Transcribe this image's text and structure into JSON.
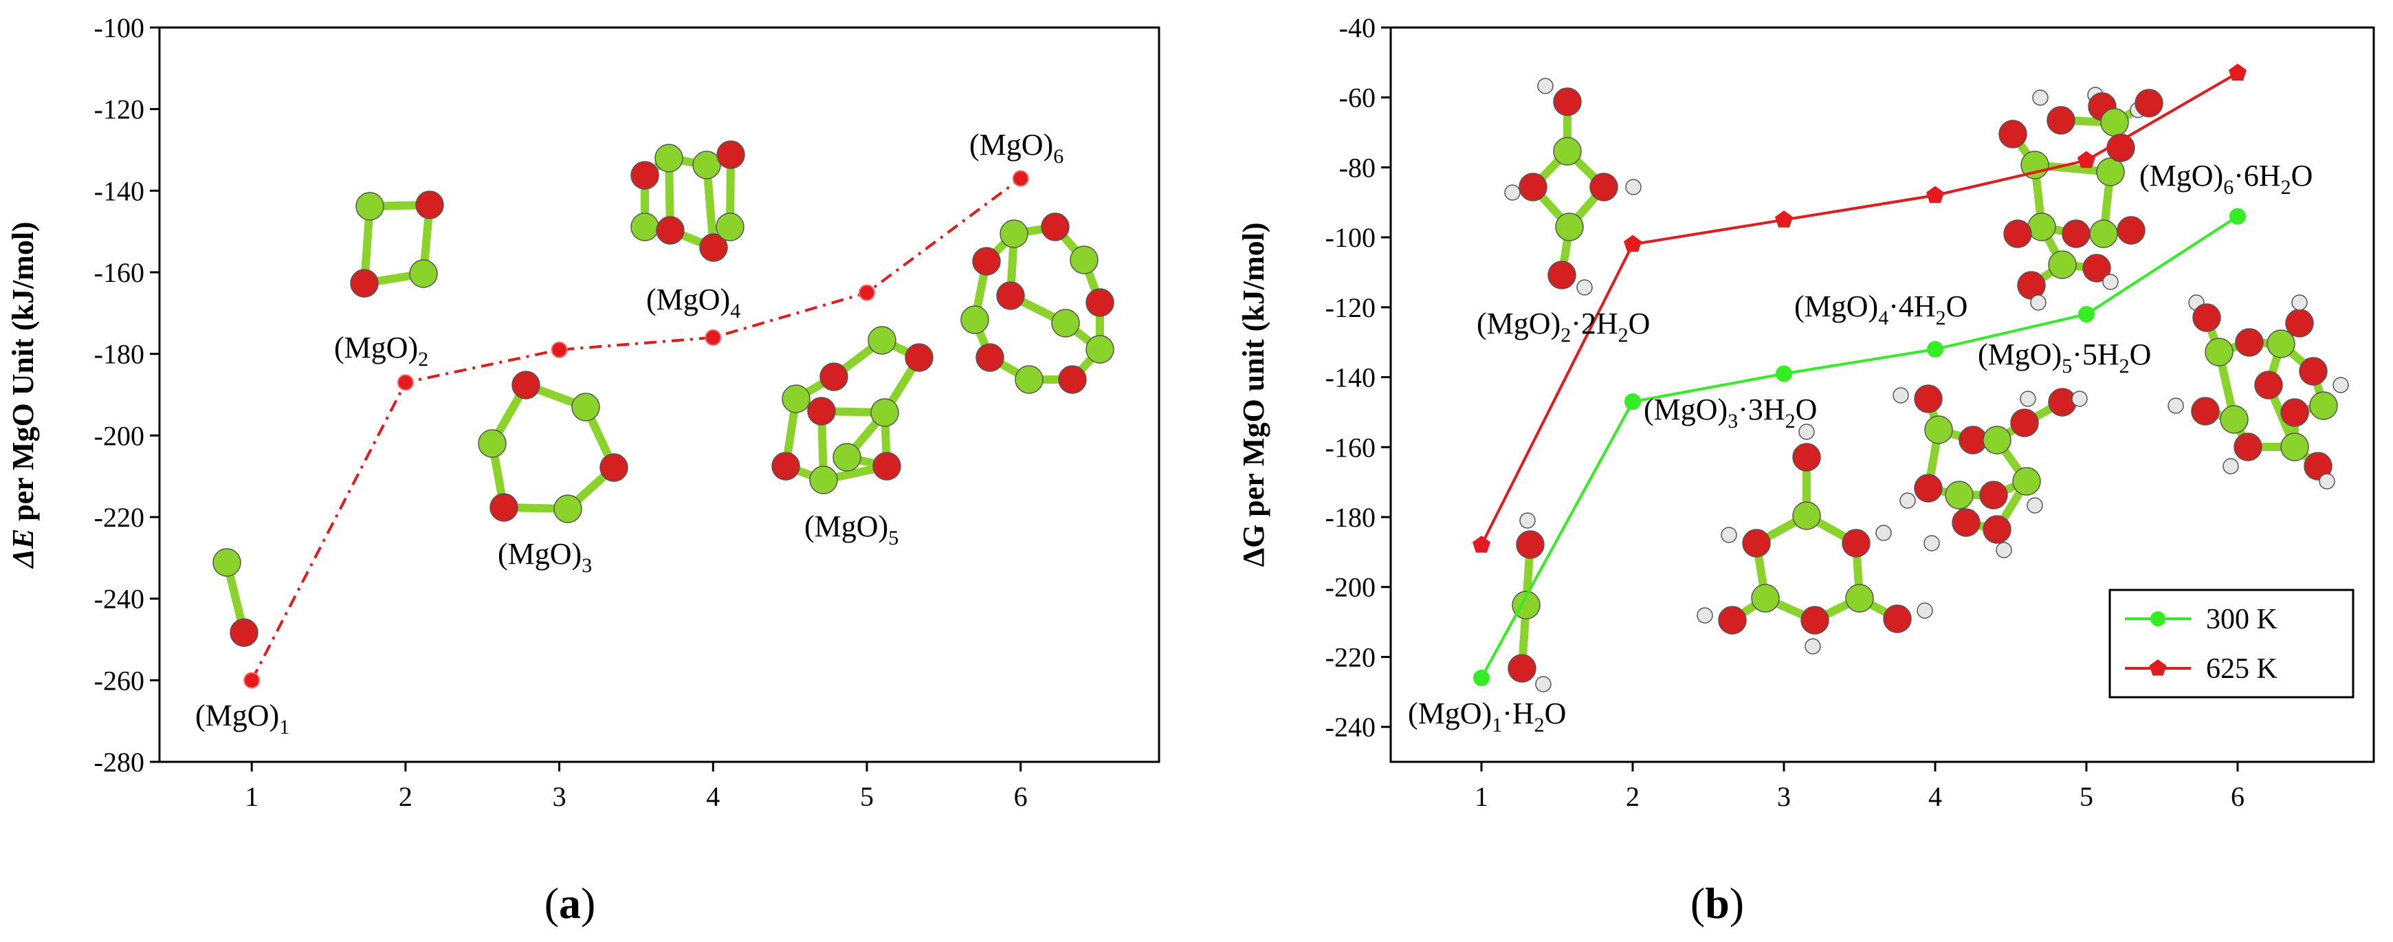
{
  "colors": {
    "red": "#e41a1c",
    "green": "#33ee22",
    "mol_red": "#d42020",
    "mol_green": "#8ad32a",
    "mol_white": "#e6e6e6"
  },
  "chart_data": [
    {
      "type": "line",
      "panel_label": "(a)",
      "ylabel_italic": "ΔE",
      "ylabel_rest": " per MgO Unit (kJ/mol)",
      "xlabel": "",
      "x": [
        1,
        2,
        3,
        4,
        5,
        6
      ],
      "xlim": [
        0.4,
        6.9
      ],
      "ylim": [
        -280,
        -100
      ],
      "xticks": [
        1,
        2,
        3,
        4,
        5,
        6
      ],
      "yticks": [
        -280,
        -260,
        -240,
        -220,
        -200,
        -180,
        -160,
        -140,
        -120,
        -100
      ],
      "grid": false,
      "series": [
        {
          "color": "#e41a1c",
          "line_style": "dash-dot",
          "marker": "circle",
          "values": [
            -260,
            -187,
            -179,
            -176,
            -165,
            -137
          ]
        }
      ],
      "annotations": [
        {
          "base": "(MgO)",
          "sub": "1",
          "x": 1,
          "y": -260
        },
        {
          "base": "(MgO)",
          "sub": "2",
          "x": 2,
          "y": -187
        },
        {
          "base": "(MgO)",
          "sub": "3",
          "x": 3,
          "y": -179
        },
        {
          "base": "(MgO)",
          "sub": "4",
          "x": 4,
          "y": -176
        },
        {
          "base": "(MgO)",
          "sub": "5",
          "x": 5,
          "y": -165
        },
        {
          "base": "(MgO)",
          "sub": "6",
          "x": 6,
          "y": -137
        }
      ]
    },
    {
      "type": "line",
      "panel_label": "(b)",
      "ylabel": "ΔG per MgO unit (kJ/mol)",
      "xlabel": "",
      "x": [
        1,
        2,
        3,
        4,
        5,
        6
      ],
      "xlim": [
        0.4,
        6.9
      ],
      "ylim": [
        -250,
        -40
      ],
      "xticks": [
        1,
        2,
        3,
        4,
        5,
        6
      ],
      "yticks": [
        -240,
        -220,
        -200,
        -180,
        -160,
        -140,
        -120,
        -100,
        -80,
        -60,
        -40
      ],
      "grid": false,
      "legend_position": "bottom-right",
      "series": [
        {
          "name": "300 K",
          "color": "#33ee22",
          "marker": "circle",
          "values": [
            -226,
            -147,
            -139,
            -132,
            -122,
            -94
          ]
        },
        {
          "name": "625 K",
          "color": "#e41a1c",
          "marker": "pentagon",
          "values": [
            -188,
            -102,
            -95,
            -88,
            -78,
            -53
          ]
        }
      ],
      "annotations": [
        {
          "base": "(MgO)",
          "sub": "1",
          "mid": "·H",
          "sub2": "",
          "tail": "O",
          "h2o": "2"
        },
        {
          "base": "(MgO)",
          "sub": "2",
          "mid": "·2H",
          "tail": "O",
          "h2o": "2"
        },
        {
          "base": "(MgO)",
          "sub": "3",
          "mid": "·3H",
          "tail": "O",
          "h2o": "2"
        },
        {
          "base": "(MgO)",
          "sub": "4",
          "mid": "·4H",
          "tail": "O",
          "h2o": "2"
        },
        {
          "base": "(MgO)",
          "sub": "5",
          "mid": "·5H",
          "tail": "O",
          "h2o": "2"
        },
        {
          "base": "(MgO)",
          "sub": "6",
          "mid": "·6H",
          "tail": "O",
          "h2o": "2"
        }
      ]
    }
  ]
}
